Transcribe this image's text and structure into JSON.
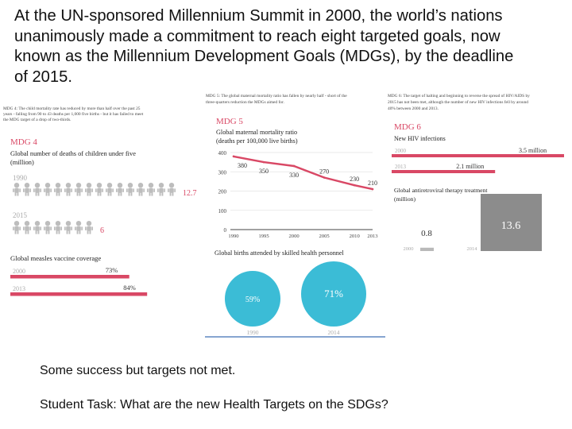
{
  "slide": {
    "title_lines": [
      "At the UN-sponsored Millennium Summit in 2000, the world’s nations",
      "unanimously made a commitment to reach eight targeted goals, now",
      "known as the Millennium Development Goals (MDGs), by the deadline",
      "of 2015."
    ],
    "caption": "Some success but targets not met.",
    "task": "Student Task: What are the new Health Targets on the SDGs?"
  },
  "colors": {
    "accent": "#d94865",
    "teal": "#3bbcd6",
    "grey": "#b9b9b9",
    "dark_grey": "#8c8c8c",
    "text_dark": "#333333"
  },
  "infographic": {
    "mdg4": {
      "header_note": [
        "MDG 4: The child mortality rate has reduced by more than half over the past 25",
        "years - falling from 90 to 43 deaths per 1,000 five births - but it has failed to meet",
        "the MDG target of a drop of two-thirds."
      ],
      "label": "MDG 4",
      "subtitle_1": "Global number of deaths of children under five",
      "subtitle_2": "(million)",
      "year_1990": "1990",
      "value_1990": "12.7",
      "year_2015": "2015",
      "value_2015": "6",
      "measles_title": "Global measles vaccine coverage",
      "measles_year_a": "2000",
      "measles_value_a": "73%",
      "measles_pct_a": 73,
      "measles_year_b": "2013",
      "measles_value_b": "84%",
      "measles_pct_b": 84
    },
    "mdg5": {
      "header_note": [
        "MDG 5: The global maternal mortality ratio has fallen by nearly half - short of the",
        "three-quarters reduction the MDGs aimed for."
      ],
      "label": "MDG 5",
      "subtitle_1": "Global maternal mortality ratio",
      "subtitle_2": "(deaths per 100,000 live births)",
      "births_title": "Global births attended by skilled health personnel",
      "births_1990_value": "59%",
      "births_1990_year": "1990",
      "births_2014_value": "71%",
      "births_2014_year": "2014"
    },
    "mdg6": {
      "header_note": [
        "MDG 6: The target of halting and beginning to reverse the spread of HIV/AIDS by",
        "2015 has not been met, although the number of new HIV infections fell by around",
        "40% between 2000 and 2013."
      ],
      "label": "MDG 6",
      "subtitle": "New HIV infections",
      "hiv_year_a": "2000",
      "hiv_value_a": "3.5 million",
      "hiv_num_a": 3.5,
      "hiv_year_b": "2013",
      "hiv_value_b": "2.1 million",
      "hiv_num_b": 2.1,
      "art_title_1": "Global antiretroviral therapy treatment",
      "art_title_2": "(million)",
      "art_year_a": "2000",
      "art_value_a": "0.8",
      "art_num_a": 0.8,
      "art_year_b": "2014",
      "art_value_b": "13.6",
      "art_num_b": 13.6
    }
  },
  "chart_data": {
    "type": "line",
    "title": "Global maternal mortality ratio",
    "ylabel": "deaths per 100,000 live births",
    "x": [
      1990,
      1995,
      2000,
      2005,
      2010,
      2013
    ],
    "values": [
      380,
      350,
      330,
      270,
      230,
      210
    ],
    "point_labels": [
      "380",
      "350",
      "330",
      "270",
      "230",
      "210"
    ],
    "x_ticks": [
      "1990",
      "1995",
      "2000",
      "2005",
      "2010",
      "2013"
    ],
    "y_ticks": [
      0,
      100,
      200,
      300,
      400
    ],
    "y_tick_labels": [
      "0",
      "100",
      "200",
      "300",
      "400"
    ],
    "ylim": [
      0,
      400
    ]
  }
}
